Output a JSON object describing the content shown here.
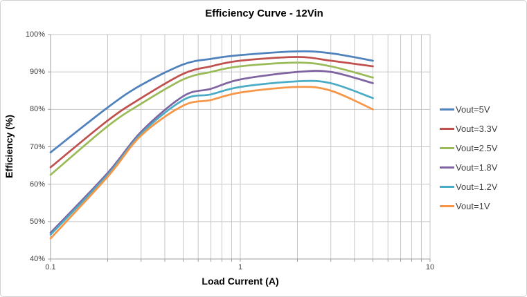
{
  "window": {
    "background_color": "#ffffff",
    "frame_border_color": "#d0d0d0"
  },
  "chart_data": {
    "type": "line",
    "title": "Efficiency Curve - 12Vin",
    "xlabel": "Load Current (A)",
    "ylabel": "Efficiency (%)",
    "x_scale": "log",
    "xlim": [
      0.1,
      10
    ],
    "ylim": [
      40,
      100
    ],
    "grid": true,
    "legend_position": "right",
    "x_tick_labels": [
      {
        "value": 0.1,
        "label": "0.1"
      },
      {
        "value": 1,
        "label": "1"
      },
      {
        "value": 10,
        "label": "10"
      }
    ],
    "y_tick_labels": [
      {
        "value": 100,
        "label": "100%"
      },
      {
        "value": 90,
        "label": "90%"
      },
      {
        "value": 80,
        "label": "80%"
      },
      {
        "value": 70,
        "label": "70%"
      },
      {
        "value": 60,
        "label": "60%"
      },
      {
        "value": 50,
        "label": "50%"
      },
      {
        "value": 40,
        "label": "40%"
      }
    ],
    "x": [
      0.1,
      0.2,
      0.3,
      0.5,
      0.7,
      1,
      2,
      3,
      5
    ],
    "series": [
      {
        "name": "Vout=5V",
        "color": "#4F81BD",
        "values": [
          68.5,
          80.5,
          86.5,
          92,
          93.5,
          94.5,
          95.5,
          95,
          93
        ]
      },
      {
        "name": "Vout=3.3V",
        "color": "#C0504D",
        "values": [
          64.5,
          77,
          83,
          89.5,
          91.5,
          93,
          94,
          93,
          91.5
        ]
      },
      {
        "name": "Vout=2.5V",
        "color": "#9BBB59",
        "values": [
          62.5,
          75.5,
          81.5,
          88,
          90,
          91.5,
          92.5,
          91.5,
          88.5
        ]
      },
      {
        "name": "Vout=1.8V",
        "color": "#8064A2",
        "values": [
          47,
          63,
          74,
          83.5,
          85.5,
          88,
          90,
          90,
          87
        ]
      },
      {
        "name": "Vout=1.2V",
        "color": "#4BACC6",
        "values": [
          46.5,
          62.5,
          73.5,
          82.5,
          84,
          86,
          87.5,
          87,
          83
        ]
      },
      {
        "name": "Vout=1V",
        "color": "#F79646",
        "values": [
          45.5,
          62,
          73,
          81,
          82.5,
          84.5,
          86,
          85,
          80
        ]
      }
    ],
    "styles": {
      "gridline_color": "#c6c6c6",
      "axis_color": "#9f9f9f",
      "tick_label_color": "#404040",
      "line_width": 2.75
    }
  }
}
